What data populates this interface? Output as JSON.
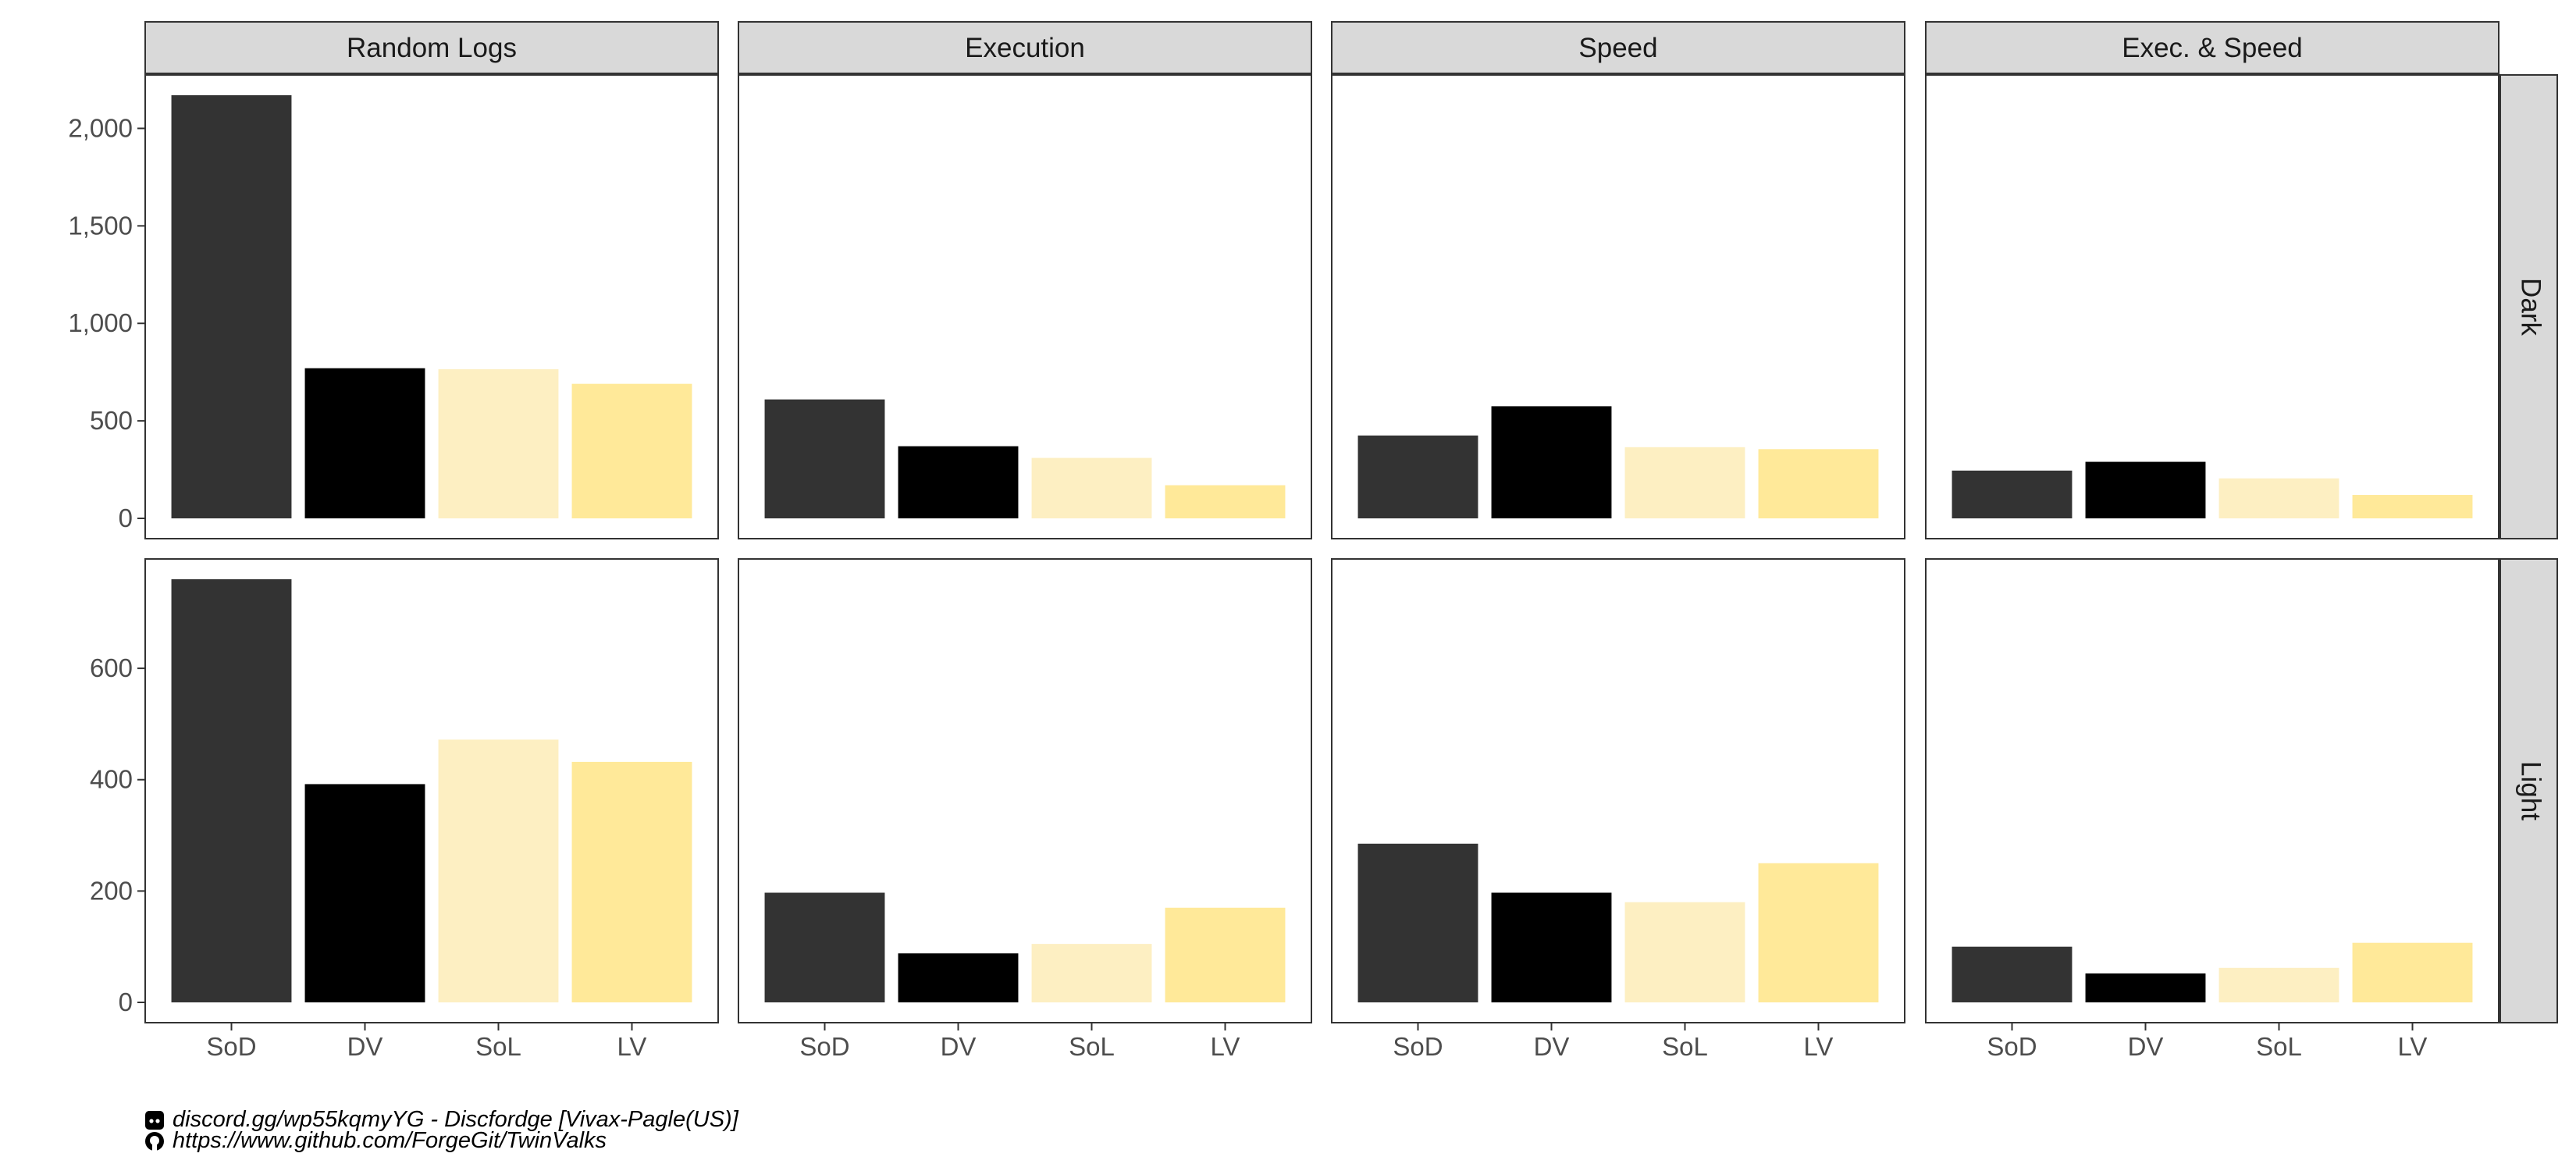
{
  "chart_data": {
    "type": "bar",
    "layout": "facet grid (columns x rows), free y-scale per row",
    "categories": [
      "SoD",
      "DV",
      "SoL",
      "LV"
    ],
    "category_colors": [
      "#333333",
      "#000000",
      "#FDEFC2",
      "#FFE999"
    ],
    "columns": [
      "Random Logs",
      "Execution",
      "Speed",
      "Exec. & Speed"
    ],
    "rows": [
      {
        "name": "Dark",
        "ylim": [
          0,
          2170
        ],
        "yticks": [
          0,
          500,
          1000,
          1500,
          2000
        ],
        "ytick_labels": [
          "0",
          "500",
          "1,000",
          "1,500",
          "2,000"
        ],
        "panels": [
          {
            "column": "Random Logs",
            "values": [
              2170,
              770,
              765,
              690
            ]
          },
          {
            "column": "Execution",
            "values": [
              610,
              370,
              310,
              170
            ]
          },
          {
            "column": "Speed",
            "values": [
              425,
              575,
              365,
              355
            ]
          },
          {
            "column": "Exec. & Speed",
            "values": [
              245,
              290,
              205,
              120
            ]
          }
        ]
      },
      {
        "name": "Light",
        "ylim": [
          0,
          760
        ],
        "yticks": [
          0,
          200,
          400,
          600
        ],
        "ytick_labels": [
          "0",
          "200",
          "400",
          "600"
        ],
        "panels": [
          {
            "column": "Random Logs",
            "values": [
              760,
              392,
              472,
              432
            ]
          },
          {
            "column": "Execution",
            "values": [
              197,
              88,
              105,
              170
            ]
          },
          {
            "column": "Speed",
            "values": [
              285,
              197,
              180,
              250
            ]
          },
          {
            "column": "Exec. & Speed",
            "values": [
              100,
              52,
              62,
              107
            ]
          }
        ]
      }
    ],
    "title": "",
    "xlabel": "",
    "ylabel": "",
    "legend": "none",
    "grid": false
  },
  "captions": {
    "discord": "discord.gg/wp55kqmyYG - Discfordge [Vivax-Pagle(US)]",
    "github": "https://www.github.com/ForgeGit/TwinValks"
  },
  "icons": {
    "discord": "discord-icon",
    "github": "github-icon"
  }
}
